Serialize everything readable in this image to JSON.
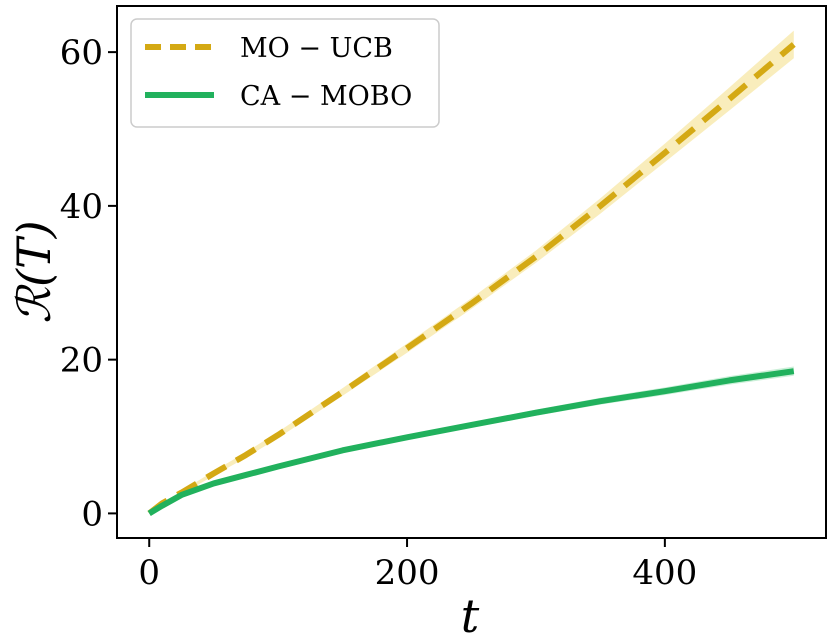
{
  "chart_data": {
    "type": "line",
    "title": "",
    "xlabel": "t",
    "ylabel": "ℛ(T)",
    "xlim": [
      -25,
      525
    ],
    "ylim": [
      -3.2,
      66
    ],
    "xticks": [
      0,
      200,
      400
    ],
    "xtick_labels": [
      "0",
      "200",
      "400"
    ],
    "yticks": [
      0,
      20,
      40,
      60
    ],
    "ytick_labels": [
      "0",
      "20",
      "40",
      "60"
    ],
    "grid": false,
    "legend_position": "top-left",
    "series": [
      {
        "name": "MO − UCB",
        "color": "#d4a914",
        "band_color": "#f7e7a6",
        "style": "dashed",
        "x": [
          0,
          10,
          25,
          50,
          75,
          100,
          150,
          200,
          250,
          300,
          350,
          400,
          450,
          500
        ],
        "y": [
          0,
          1.3,
          2.7,
          5.2,
          7.6,
          10.2,
          15.8,
          21.5,
          27.3,
          33.4,
          40.0,
          46.9,
          53.9,
          61.0
        ],
        "band": [
          0,
          0.1,
          0.2,
          0.3,
          0.35,
          0.4,
          0.5,
          0.6,
          0.7,
          0.8,
          1.0,
          1.2,
          1.5,
          1.8
        ]
      },
      {
        "name": "CA − MOBO",
        "color": "#21b15d",
        "band_color": "#b9e9cb",
        "style": "solid",
        "x": [
          0,
          10,
          25,
          50,
          75,
          100,
          150,
          200,
          250,
          300,
          350,
          400,
          450,
          500
        ],
        "y": [
          0,
          1.0,
          2.4,
          3.9,
          5.0,
          6.1,
          8.2,
          9.9,
          11.5,
          13.1,
          14.6,
          15.9,
          17.3,
          18.5
        ],
        "band": [
          0,
          0.1,
          0.15,
          0.2,
          0.2,
          0.25,
          0.3,
          0.3,
          0.35,
          0.4,
          0.45,
          0.5,
          0.55,
          0.6
        ]
      }
    ]
  }
}
